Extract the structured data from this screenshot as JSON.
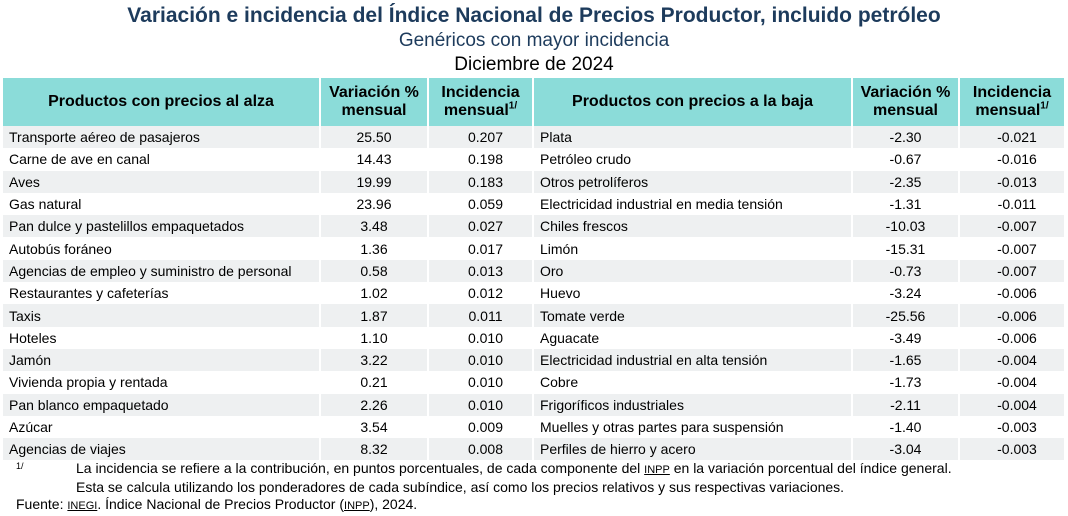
{
  "header": {
    "title": "Variación e incidencia del Índice Nacional de Precios Productor, incluido petróleo",
    "subtitle": "Genéricos con mayor incidencia",
    "period": "Diciembre de 2024"
  },
  "columns": {
    "up_name": "Productos con precios al alza",
    "up_var": "Variación %",
    "up_var2": "mensual",
    "up_inc": "Incidencia",
    "up_inc2": "mensual",
    "up_inc_sup": "1/",
    "down_name": "Productos con precios a la baja",
    "down_var": "Variación %",
    "down_var2": "mensual",
    "down_inc": "Incidencia",
    "down_inc2": "mensual",
    "down_inc_sup": "1/"
  },
  "rows": [
    {
      "up": "Transporte aéreo de pasajeros",
      "up_var": "25.50",
      "up_inc": "0.207",
      "down": "Plata",
      "down_var": "-2.30",
      "down_inc": "-0.021"
    },
    {
      "up": "Carne de ave en canal",
      "up_var": "14.43",
      "up_inc": "0.198",
      "down": "Petróleo crudo",
      "down_var": "-0.67",
      "down_inc": "-0.016"
    },
    {
      "up": "Aves",
      "up_var": "19.99",
      "up_inc": "0.183",
      "down": "Otros petrolíferos",
      "down_var": "-2.35",
      "down_inc": "-0.013"
    },
    {
      "up": "Gas natural",
      "up_var": "23.96",
      "up_inc": "0.059",
      "down": "Electricidad industrial en media tensión",
      "down_var": "-1.31",
      "down_inc": "-0.011"
    },
    {
      "up": "Pan dulce y pastelillos empaquetados",
      "up_var": "3.48",
      "up_inc": "0.027",
      "down": "Chiles frescos",
      "down_var": "-10.03",
      "down_inc": "-0.007"
    },
    {
      "up": "Autobús foráneo",
      "up_var": "1.36",
      "up_inc": "0.017",
      "down": "Limón",
      "down_var": "-15.31",
      "down_inc": "-0.007"
    },
    {
      "up": "Agencias de empleo y suministro de personal",
      "up_var": "0.58",
      "up_inc": "0.013",
      "down": "Oro",
      "down_var": "-0.73",
      "down_inc": "-0.007"
    },
    {
      "up": "Restaurantes y cafeterías",
      "up_var": "1.02",
      "up_inc": "0.012",
      "down": "Huevo",
      "down_var": "-3.24",
      "down_inc": "-0.006"
    },
    {
      "up": "Taxis",
      "up_var": "1.87",
      "up_inc": "0.011",
      "down": "Tomate verde",
      "down_var": "-25.56",
      "down_inc": "-0.006"
    },
    {
      "up": "Hoteles",
      "up_var": "1.10",
      "up_inc": "0.010",
      "down": "Aguacate",
      "down_var": "-3.49",
      "down_inc": "-0.006"
    },
    {
      "up": "Jamón",
      "up_var": "3.22",
      "up_inc": "0.010",
      "down": "Electricidad industrial en alta tensión",
      "down_var": "-1.65",
      "down_inc": "-0.004"
    },
    {
      "up": "Vivienda propia y rentada",
      "up_var": "0.21",
      "up_inc": "0.010",
      "down": "Cobre",
      "down_var": "-1.73",
      "down_inc": "-0.004"
    },
    {
      "up": "Pan blanco empaquetado",
      "up_var": "2.26",
      "up_inc": "0.010",
      "down": "Frigoríficos industriales",
      "down_var": "-2.11",
      "down_inc": "-0.004"
    },
    {
      "up": "Azúcar",
      "up_var": "3.54",
      "up_inc": "0.009",
      "down": "Muelles y otras partes para suspensión",
      "down_var": "-1.40",
      "down_inc": "-0.003"
    },
    {
      "up": "Agencias de viajes",
      "up_var": "8.32",
      "up_inc": "0.008",
      "down": "Perfiles de hierro y acero",
      "down_var": "-3.04",
      "down_inc": "-0.003"
    }
  ],
  "footnote": {
    "mark": "1/",
    "line1_a": "La incidencia se refiere a la contribución, en puntos porcentuales, de cada componente del ",
    "line1_abbr": "INPP",
    "line1_b": " en la variación porcentual del índice general.",
    "line2": "Esta se calcula utilizando los ponderadores de cada subíndice, así como los precios relativos y sus respectivas variaciones."
  },
  "source": {
    "label": "Fuente: ",
    "org": "INEGI",
    "text_a": ". Índice Nacional de Precios Productor (",
    "abbr": "INPP",
    "text_b": "), 2024."
  },
  "colors": {
    "title": "#1d3b5c",
    "header_bg": "#8bdcd9",
    "row_stripe": "#eef0f1"
  }
}
